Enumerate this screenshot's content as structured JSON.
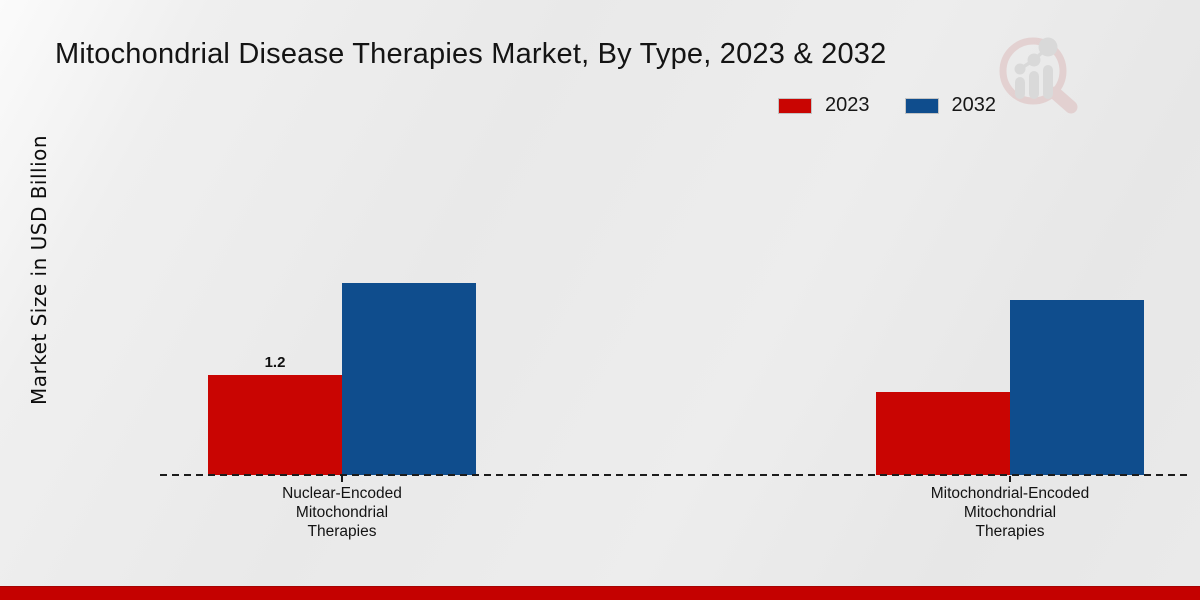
{
  "chart_data": {
    "type": "bar",
    "title": "Mitochondrial Disease Therapies Market, By Type, 2023 & 2032",
    "ylabel": "Market Size in USD Billion",
    "xlabel": "",
    "categories": [
      "Nuclear-Encoded Mitochondrial Therapies",
      "Mitochondrial-Encoded Mitochondrial Therapies"
    ],
    "category_lines": [
      [
        "Nuclear-Encoded",
        "Mitochondrial",
        "Therapies"
      ],
      [
        "Mitochondrial-Encoded",
        "Mitochondrial",
        "Therapies"
      ]
    ],
    "series": [
      {
        "name": "2023",
        "color": "#c90502",
        "values": [
          1.2,
          1.0
        ],
        "data_labels": [
          "1.2",
          ""
        ]
      },
      {
        "name": "2032",
        "color": "#0f4d8d",
        "values": [
          2.3,
          2.1
        ],
        "data_labels": [
          "",
          ""
        ]
      }
    ],
    "grid": false,
    "legend_position": "top-right",
    "baseline_style": "dashed"
  },
  "watermark": {
    "icon": "market-research-future-magnifier-logo"
  },
  "colors": {
    "accent_red": "#c90502",
    "accent_blue": "#0f4d8d",
    "footer_bar": "#c40100",
    "background": "#e9e9e9",
    "text": "#141414"
  }
}
